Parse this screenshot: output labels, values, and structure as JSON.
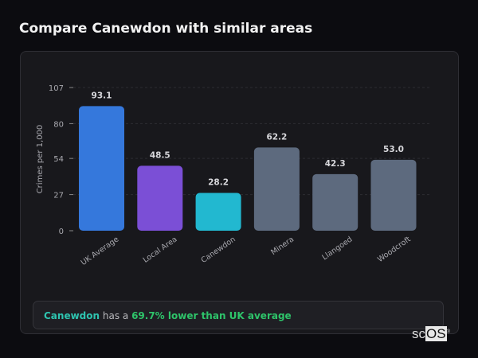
{
  "title": "Compare Canewdon with similar areas",
  "chart_data": {
    "type": "bar",
    "categories": [
      "UK Average",
      "Local Area",
      "Canewdon",
      "Minera",
      "Llangoed",
      "Woodcroft"
    ],
    "values": [
      93.1,
      48.5,
      28.2,
      62.2,
      42.3,
      53.0
    ],
    "value_labels": [
      "93.1",
      "48.5",
      "28.2",
      "62.2",
      "42.3",
      "53.0"
    ],
    "colors": [
      "#3578dc",
      "#7b4fd6",
      "#22b8d0",
      "#5d6a7e",
      "#5d6a7e",
      "#5d6a7e"
    ],
    "ylabel": "Crimes per 1,000",
    "xlabel": "",
    "yticks": [
      0,
      27,
      54,
      80,
      107
    ],
    "ylim": [
      0,
      107
    ],
    "grid": true
  },
  "callout": {
    "area": "Canewdon",
    "middle": " has a ",
    "comparison": "69.7% lower than UK average"
  },
  "logo": {
    "text": "scOS"
  }
}
